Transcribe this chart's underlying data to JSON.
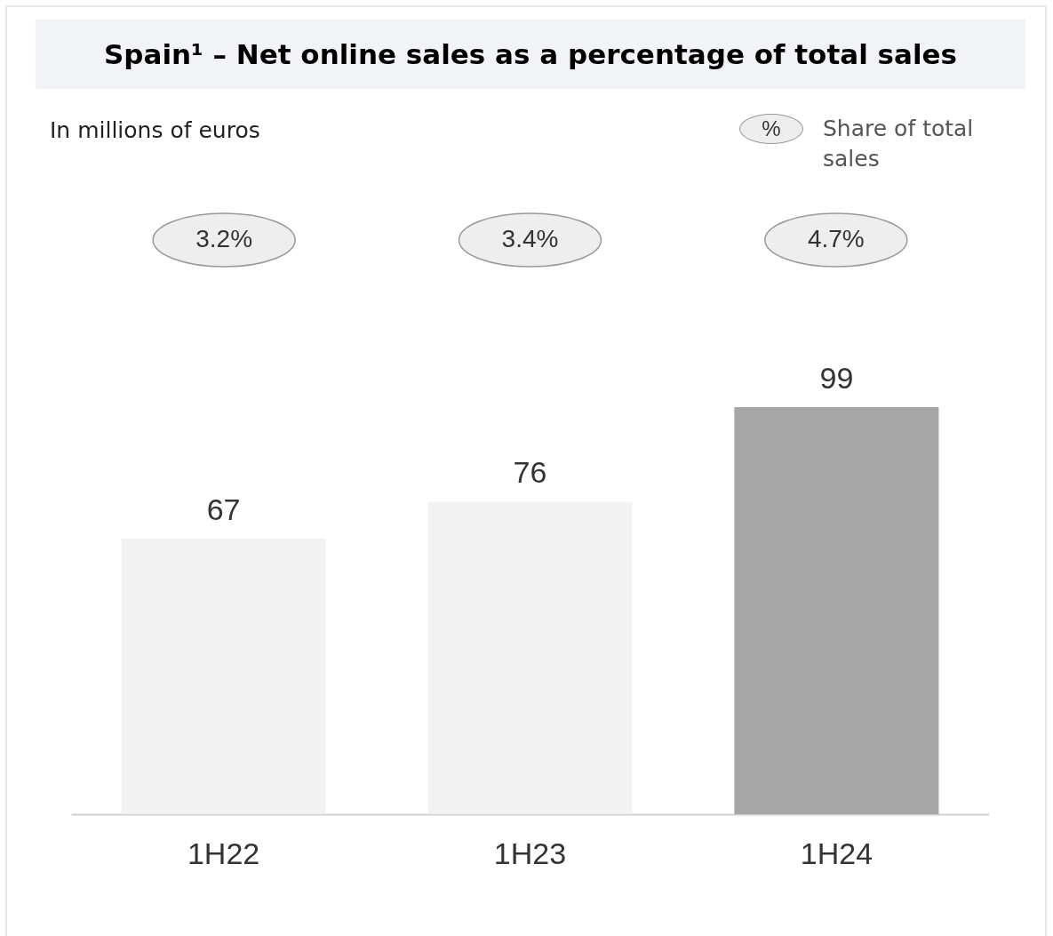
{
  "chart_data": {
    "type": "bar",
    "title": "Spain¹ – Net online sales as a percentage of total sales",
    "subtitle": "In millions of euros",
    "categories": [
      "1H22",
      "1H23",
      "1H24"
    ],
    "values": [
      67,
      76,
      99
    ],
    "colors": [
      "#f2f2f2",
      "#f2f2f2",
      "#a6a6a6"
    ],
    "data_labels": true,
    "annotations": [
      "%",
      "Share of total sales",
      "3.2%",
      "3.4%",
      "4.7%"
    ]
  }
}
